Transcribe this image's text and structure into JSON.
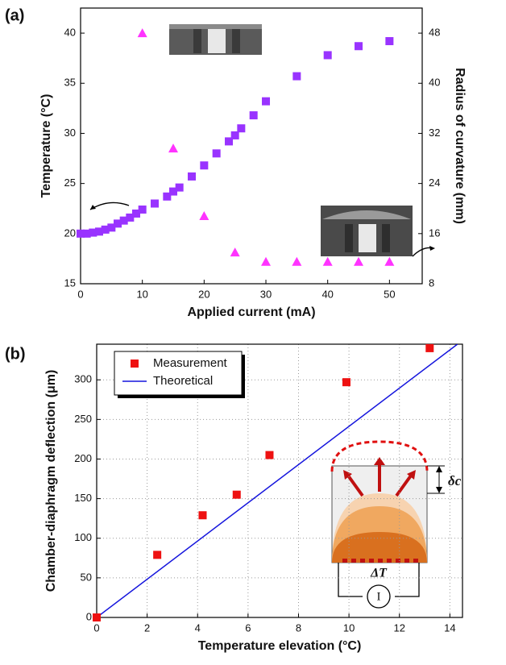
{
  "chart_data": [
    {
      "type": "scatter",
      "panel_label": "(a)",
      "xlabel": "Applied current (mA)",
      "ylabel": "Temperature (°C)",
      "y2label": "Radius of curvature (mm)",
      "xlim": [
        0,
        55.3
      ],
      "xticks": [
        0,
        10,
        20,
        30,
        40,
        50
      ],
      "ylim": [
        15,
        42.5
      ],
      "yticks": [
        15,
        20,
        25,
        30,
        35,
        40
      ],
      "y2lim": [
        8,
        52
      ],
      "y2ticks": [
        8,
        16,
        24,
        32,
        40,
        48
      ],
      "grid": false,
      "legend": false,
      "series": [
        {
          "marker": "square",
          "color": "#9933ff",
          "x": [
            0,
            1,
            2,
            3,
            4,
            5,
            6,
            7,
            8,
            9,
            10,
            12,
            14,
            15,
            16,
            18,
            20,
            22,
            24,
            25,
            26,
            28,
            30,
            35,
            40,
            45,
            50
          ],
          "values": [
            20.0,
            20.0,
            20.1,
            20.2,
            20.4,
            20.6,
            21.0,
            21.3,
            21.6,
            22.0,
            22.4,
            23.0,
            23.7,
            24.2,
            24.6,
            25.7,
            26.8,
            28.0,
            29.2,
            29.8,
            30.5,
            31.8,
            33.2,
            35.7,
            37.8,
            38.7,
            39.2
          ]
        },
        {
          "marker": "triangle",
          "color": "#ff33ff",
          "axis": "y2",
          "x": [
            10,
            15,
            20,
            25,
            30,
            35,
            40,
            45,
            50
          ],
          "values": [
            48,
            29.6,
            18.8,
            13,
            11.5,
            11.5,
            11.5,
            11.5,
            11.5
          ]
        }
      ]
    },
    {
      "type": "scatter",
      "panel_label": "(b)",
      "xlabel": "Temperature elevation (°C)",
      "ylabel": "Chamber-diaphragm deflection (μm)",
      "xlim": [
        0,
        14.5
      ],
      "xticks": [
        0,
        2,
        4,
        6,
        8,
        10,
        12,
        14
      ],
      "ylim": [
        0,
        345
      ],
      "yticks": [
        0,
        50,
        100,
        150,
        200,
        250,
        300
      ],
      "grid": true,
      "legend": "upper left",
      "annotations": {
        "delta": "δc",
        "temp": "ΔT",
        "current": "I"
      },
      "series": [
        {
          "name": "Measurement",
          "marker": "square",
          "color": "#ee1111",
          "x": [
            0,
            2.4,
            4.2,
            5.55,
            6.85,
            9.9,
            13.2
          ],
          "values": [
            0,
            79,
            129,
            155,
            205,
            297,
            340
          ]
        },
        {
          "name": "Theoretical",
          "marker": "line",
          "color": "#1515dd",
          "x": [
            0,
            14.3
          ],
          "values": [
            0,
            345
          ]
        }
      ]
    }
  ]
}
